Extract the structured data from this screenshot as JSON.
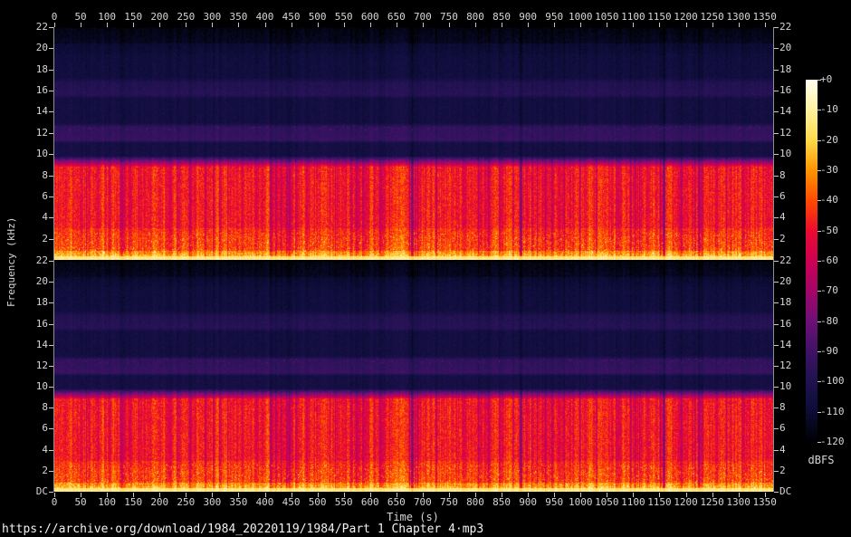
{
  "axes": {
    "time_label": "Time (s)",
    "freq_label": "Frequency (kHz)",
    "time_ticks": [
      "0",
      "50",
      "100",
      "150",
      "200",
      "250",
      "300",
      "350",
      "400",
      "450",
      "500",
      "550",
      "600",
      "650",
      "700",
      "750",
      "800",
      "850",
      "900",
      "950",
      "1000",
      "1050",
      "1100",
      "1150",
      "1200",
      "1250",
      "1300",
      "1350"
    ],
    "freq_ticks": [
      "22",
      "20",
      "18",
      "16",
      "14",
      "12",
      "10",
      "8",
      "6",
      "4",
      "2"
    ],
    "dc_label": "DC"
  },
  "colorbar": {
    "title": "dBFS",
    "ticks": [
      "+0",
      "-10",
      "-20",
      "-30",
      "-40",
      "-50",
      "-60",
      "-70",
      "-80",
      "-90",
      "-100",
      "-110",
      "-120"
    ]
  },
  "footer": {
    "file_path": "https://archive·org/download/1984_20220119/1984/Part 1 Chapter 4·mp3"
  },
  "chart_data": {
    "type": "heatmap",
    "subtype": "audio-spectrogram",
    "title": "",
    "x": {
      "label": "Time (s)",
      "min": 0,
      "max": 1366,
      "tick_step": 50
    },
    "y": {
      "label": "Frequency (kHz)",
      "min": 0,
      "max": 22,
      "tick_step": 2,
      "origin_label": "DC"
    },
    "z": {
      "label": "dBFS",
      "min": -120,
      "max": 0,
      "tick_step": 10
    },
    "channels": [
      "channel-1-top",
      "channel-2-bottom"
    ],
    "channels_identical": true,
    "legend_position": "right-colorbar",
    "grid": false,
    "bands": [
      {
        "f0": 0,
        "f1": 0.35,
        "db0": -13,
        "db1": -13
      },
      {
        "f0": 0.35,
        "f1": 0.9,
        "db0": -22,
        "db1": -30
      },
      {
        "f0": 0.9,
        "f1": 3,
        "db0": -38,
        "db1": -42
      },
      {
        "f0": 3,
        "f1": 8.9,
        "db0": -46,
        "db1": -46
      },
      {
        "f0": 8.9,
        "f1": 9.8,
        "db0": -50,
        "db1": -98
      },
      {
        "f0": 9.8,
        "f1": 11.1,
        "db0": -104,
        "db1": -104
      },
      {
        "f0": 11.1,
        "f1": 11.35,
        "db0": -104,
        "db1": -92
      },
      {
        "f0": 11.35,
        "f1": 12.6,
        "db0": -92,
        "db1": -94
      },
      {
        "f0": 12.6,
        "f1": 12.95,
        "db0": -94,
        "db1": -104
      },
      {
        "f0": 12.95,
        "f1": 15.3,
        "db0": -105,
        "db1": -105
      },
      {
        "f0": 15.3,
        "f1": 15.65,
        "db0": -105,
        "db1": -97
      },
      {
        "f0": 15.65,
        "f1": 16.8,
        "db0": -97,
        "db1": -99
      },
      {
        "f0": 16.8,
        "f1": 17.25,
        "db0": -99,
        "db1": -106
      },
      {
        "f0": 17.25,
        "f1": 19.5,
        "db0": -106,
        "db1": -107
      },
      {
        "f0": 19.5,
        "f1": 20.5,
        "db0": -108,
        "db1": -110
      },
      {
        "f0": 20.5,
        "f1": 22,
        "db0": -113,
        "db1": -116
      }
    ],
    "mp3_lowpass_cutoff_khz": 9.5,
    "silences_s": [
      679,
      886,
      1157
    ],
    "palette": [
      {
        "db": 0,
        "color": "#fffff0"
      },
      {
        "db": -10,
        "color": "#fff2a0"
      },
      {
        "db": -20,
        "color": "#ffd948"
      },
      {
        "db": -30,
        "color": "#ff9500"
      },
      {
        "db": -40,
        "color": "#ff4a00"
      },
      {
        "db": -50,
        "color": "#ec0b30"
      },
      {
        "db": -60,
        "color": "#cd0054"
      },
      {
        "db": -70,
        "color": "#a2066a"
      },
      {
        "db": -80,
        "color": "#6e1076"
      },
      {
        "db": -90,
        "color": "#3f1266"
      },
      {
        "db": -100,
        "color": "#1f1250"
      },
      {
        "db": -110,
        "color": "#0c0c36"
      },
      {
        "db": -120,
        "color": "#000000"
      }
    ]
  }
}
